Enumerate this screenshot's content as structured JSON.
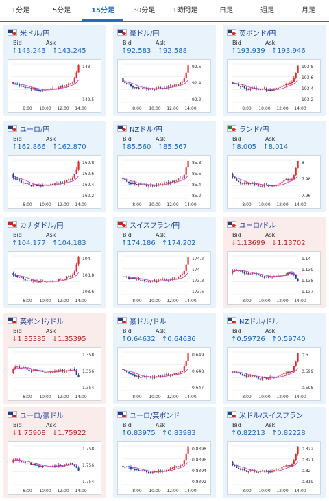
{
  "tabs": [
    {
      "label": "1分足",
      "active": false
    },
    {
      "label": "5分足",
      "active": false
    },
    {
      "label": "15分足",
      "active": true
    },
    {
      "label": "30分足",
      "active": false
    },
    {
      "label": "1時間足",
      "active": false
    },
    {
      "label": "日足",
      "active": false
    },
    {
      "label": "週足",
      "active": false
    },
    {
      "label": "月足",
      "active": false
    }
  ],
  "labels": {
    "bid": "Bid",
    "ask": "Ask"
  },
  "colors": {
    "up_bg": "#e8f3fb",
    "down_bg": "#fbecec",
    "up_text": "#1a66c0",
    "down_text": "#c02020",
    "bull": "#e02a2a",
    "bear": "#1d3f9f",
    "ma": "#c341c3"
  },
  "cards": [
    {
      "name": "米ドル/円",
      "dir": "up",
      "flag": [
        "#223b8f",
        "#d21f1f"
      ],
      "bid": "↑143.243",
      "ask": "↑143.245",
      "yticks": [
        "143",
        "142.5"
      ],
      "xticks": [
        "8:00",
        "10:00",
        "12:00",
        "14:00"
      ]
    },
    {
      "name": "豪ドル/円",
      "dir": "up",
      "flag": [
        "#223b8f",
        "#d21f1f"
      ],
      "bid": "↑92.583",
      "ask": "↑92.588",
      "yticks": [
        "92.6",
        "92.4",
        "92.2"
      ],
      "xticks": [
        "8:00",
        "10:00",
        "12:00",
        "14:00"
      ]
    },
    {
      "name": "英ポンド/円",
      "dir": "up",
      "flag": [
        "#223b8f",
        "#d21f1f"
      ],
      "bid": "↑193.939",
      "ask": "↑193.946",
      "yticks": [
        "193.8",
        "193.6",
        "193.4",
        "193.2"
      ],
      "xticks": [
        "8:00",
        "10:00",
        "12:00",
        "14:00"
      ]
    },
    {
      "name": "ユーロ/円",
      "dir": "up",
      "flag": [
        "#223b8f",
        "#d21f1f"
      ],
      "bid": "↑162.866",
      "ask": "↑162.870",
      "yticks": [
        "162.8",
        "162.6",
        "162.4",
        "162.2"
      ],
      "xticks": [
        "8:00",
        "10:00",
        "12:00",
        "14:00"
      ]
    },
    {
      "name": "NZドル/円",
      "dir": "up",
      "flag": [
        "#223b8f",
        "#d21f1f"
      ],
      "bid": "↑85.560",
      "ask": "↑85.567",
      "yticks": [
        "85.8",
        "85.6",
        "85.4",
        "85.2"
      ],
      "xticks": [
        "8:00",
        "10:00",
        "12:00",
        "14:00"
      ]
    },
    {
      "name": "ランド/円",
      "dir": "up",
      "flag": [
        "#1f8a3c",
        "#d21f1f"
      ],
      "bid": "↑8.005",
      "ask": "↑8.014",
      "yticks": [
        "8",
        "7.98",
        "7.96"
      ],
      "xticks": [
        "8:00",
        "10:00",
        "12:00",
        "14:00"
      ]
    },
    {
      "name": "カナダドル/円",
      "dir": "up",
      "flag": [
        "#d21f1f",
        "#d21f1f"
      ],
      "bid": "↑104.177",
      "ask": "↑104.183",
      "yticks": [
        "104",
        "103.8",
        "103.6"
      ],
      "xticks": [
        "8:00",
        "10:00",
        "12:00",
        "14:00"
      ]
    },
    {
      "name": "スイスフラン/円",
      "dir": "up",
      "flag": [
        "#d21f1f",
        "#d21f1f"
      ],
      "bid": "↑174.186",
      "ask": "↑174.202",
      "yticks": [
        "174.2",
        "174",
        "173.8",
        "173.6"
      ],
      "xticks": [
        "8:00",
        "10:00",
        "12:00",
        "14:00"
      ]
    },
    {
      "name": "ユーロ/ドル",
      "dir": "down",
      "flag": [
        "#223b8f",
        "#d21f1f"
      ],
      "bid": "↓1.13699",
      "ask": "↓1.13702",
      "yticks": [
        "1.14",
        "1.139",
        "1.138",
        "1.137"
      ],
      "xticks": [
        "8:00",
        "10:00",
        "12:00",
        "14:00"
      ]
    },
    {
      "name": "英ポンド/ドル",
      "dir": "down",
      "flag": [
        "#223b8f",
        "#d21f1f"
      ],
      "bid": "↓1.35385",
      "ask": "↓1.35395",
      "yticks": [
        "1.358",
        "1.356",
        "1.354"
      ],
      "xticks": [
        "8:00",
        "10:00",
        "12:00",
        "14:00"
      ]
    },
    {
      "name": "豪ドル/ドル",
      "dir": "up",
      "flag": [
        "#223b8f",
        "#d21f1f"
      ],
      "bid": "↑0.64632",
      "ask": "↑0.64636",
      "yticks": [
        "0.649",
        "0.648",
        "0.647"
      ],
      "xticks": [
        "8:00",
        "10:00",
        "12:00",
        "14:00"
      ]
    },
    {
      "name": "NZドル/ドル",
      "dir": "up",
      "flag": [
        "#223b8f",
        "#d21f1f"
      ],
      "bid": "↑0.59726",
      "ask": "↑0.59740",
      "yticks": [
        "0.6",
        "0.599",
        "0.598"
      ],
      "xticks": [
        "8:00",
        "10:00",
        "12:00",
        "14:00"
      ]
    },
    {
      "name": "ユーロ/豪ドル",
      "dir": "down",
      "flag": [
        "#223b8f",
        "#d21f1f"
      ],
      "bid": "↓1.75908",
      "ask": "↓1.75922",
      "yticks": [
        "1.758",
        "1.756",
        "1.754"
      ],
      "xticks": [
        "8:00",
        "10:00",
        "12:00",
        "14:00"
      ]
    },
    {
      "name": "ユーロ/英ポンド",
      "dir": "up",
      "flag": [
        "#223b8f",
        "#d21f1f"
      ],
      "bid": "↑0.83975",
      "ask": "↑0.83983",
      "yticks": [
        "0.8398",
        "0.8396",
        "0.8394",
        "0.8392"
      ],
      "xticks": [
        "8:00",
        "10:00",
        "12:00",
        "14:00"
      ]
    },
    {
      "name": "米ドル/スイスフラン",
      "dir": "up",
      "flag": [
        "#223b8f",
        "#d21f1f"
      ],
      "bid": "↑0.82213",
      "ask": "↑0.82228",
      "yticks": [
        "0.822",
        "0.821",
        "0.82",
        "0.819"
      ],
      "xticks": [
        "8:00",
        "10:00",
        "12:00",
        "14:00"
      ]
    }
  ]
}
